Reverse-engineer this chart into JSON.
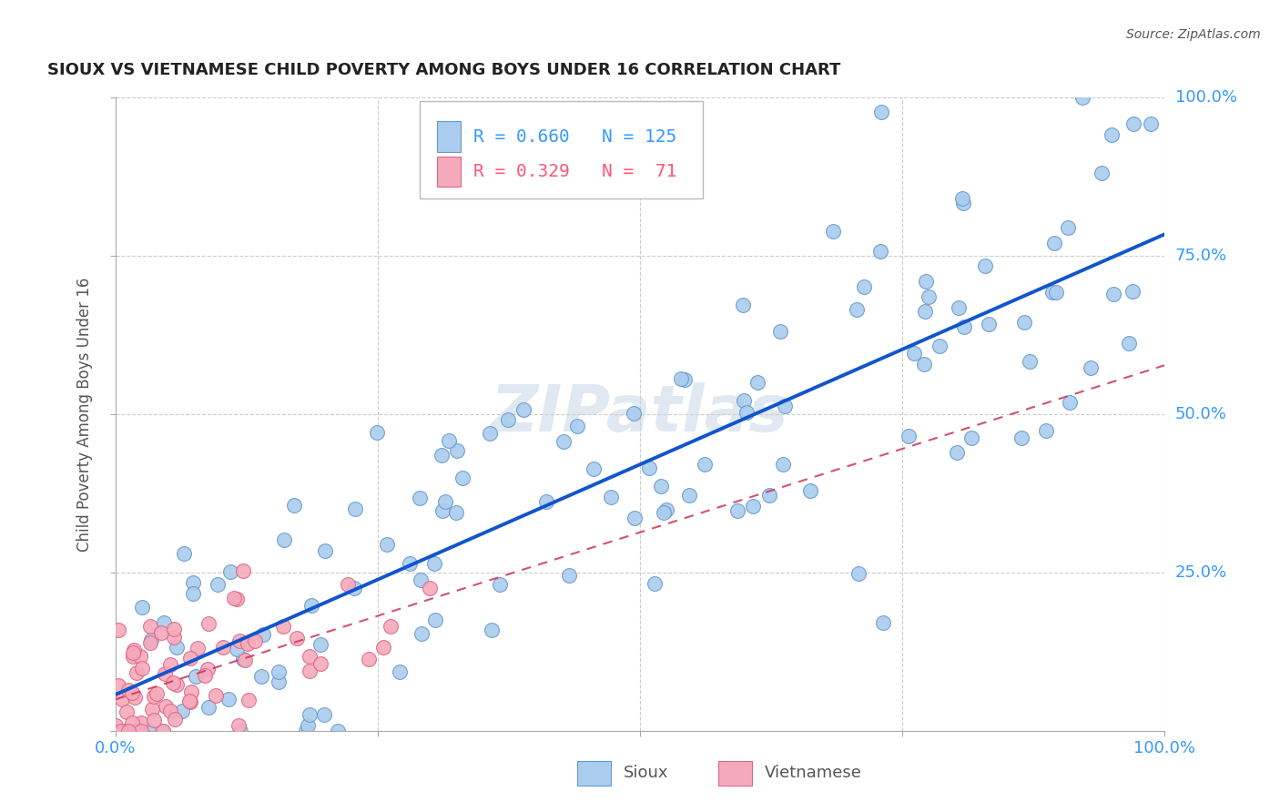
{
  "title": "SIOUX VS VIETNAMESE CHILD POVERTY AMONG BOYS UNDER 16 CORRELATION CHART",
  "source": "Source: ZipAtlas.com",
  "ylabel": "Child Poverty Among Boys Under 16",
  "sioux_R": 0.66,
  "sioux_N": 125,
  "viet_R": 0.329,
  "viet_N": 71,
  "watermark": "ZIPatlas",
  "sioux_color": "#aaccee",
  "sioux_edge": "#6699cc",
  "viet_color": "#f5aabb",
  "viet_edge": "#dd6688",
  "sioux_line_color": "#1155cc",
  "viet_line_color": "#cc3355",
  "background": "#ffffff",
  "grid_color": "#cccccc",
  "title_color": "#222222",
  "label_color": "#3399ff",
  "source_color": "#555555",
  "ylabel_color": "#555555",
  "legend_border_color": "#bbbbbb",
  "bottom_legend_color": "#555555"
}
